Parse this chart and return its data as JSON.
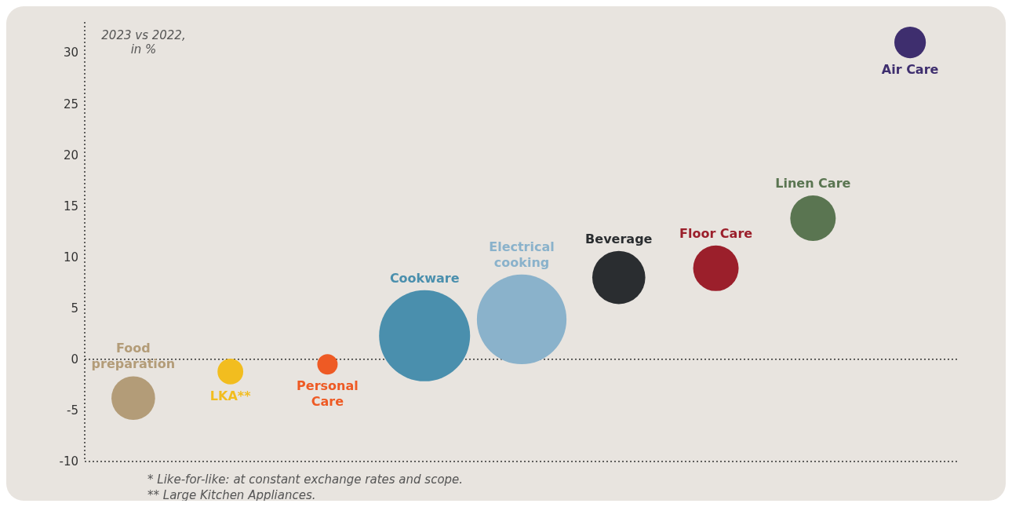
{
  "chart_data": {
    "type": "bubble",
    "ylabel": "2023 vs 2022, in %",
    "categories": [
      "Food preparation",
      "LKA**",
      "Personal Care",
      "Cookware",
      "Electrical cooking",
      "Beverage",
      "Floor Care",
      "Linen Care",
      "Air Care"
    ],
    "values": [
      -3.8,
      -1.2,
      -0.5,
      2.3,
      3.9,
      8,
      8.9,
      13.8,
      31
    ],
    "sizes": [
      0.23,
      0.08,
      0.05,
      1,
      0.97,
      0.34,
      0.25,
      0.25,
      0.12
    ],
    "colors": [
      "#b39c78",
      "#f2bd1f",
      "#ee5a24",
      "#4a8fad",
      "#8ab2cb",
      "#2a2d30",
      "#9b1f2b",
      "#5a7551",
      "#3e2e6e"
    ],
    "ylim": [
      -10,
      33
    ],
    "yticks": [
      -10,
      -5,
      0,
      5,
      10,
      15,
      20,
      25,
      30
    ],
    "ref_lines": [
      {
        "axis": "y",
        "value": 0,
        "line_style": "dotted"
      }
    ],
    "grid": false,
    "legend": false,
    "annotations": [
      "* Like-for-like: at constant exchange rates and scope.",
      "** Large Kitchen Appliances."
    ]
  }
}
